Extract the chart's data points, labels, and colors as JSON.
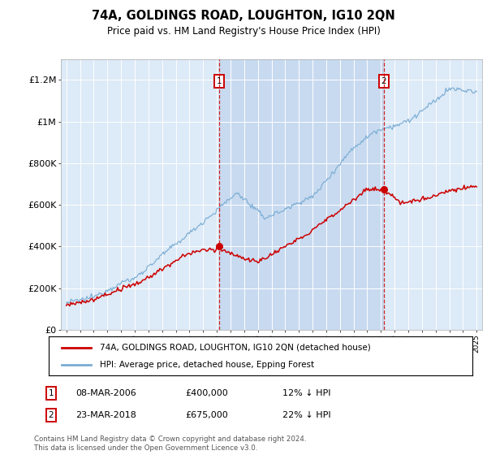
{
  "title": "74A, GOLDINGS ROAD, LOUGHTON, IG10 2QN",
  "subtitle": "Price paid vs. HM Land Registry's House Price Index (HPI)",
  "ylim": [
    0,
    1300000
  ],
  "yticks": [
    0,
    200000,
    400000,
    600000,
    800000,
    1000000,
    1200000
  ],
  "ytick_labels": [
    "£0",
    "£200K",
    "£400K",
    "£600K",
    "£800K",
    "£1M",
    "£1.2M"
  ],
  "bg_color": "#ddeaf7",
  "shade_color": "#c8daf0",
  "red_line_color": "#cc0000",
  "blue_line_color": "#7aadd4",
  "sale1_date": "08-MAR-2006",
  "sale1_price": 400000,
  "sale1_hpi": "12% ↓ HPI",
  "sale1_x": 2006.18,
  "sale2_date": "23-MAR-2018",
  "sale2_price": 675000,
  "sale2_hpi": "22% ↓ HPI",
  "sale2_x": 2018.22,
  "legend_label_red": "74A, GOLDINGS ROAD, LOUGHTON, IG10 2QN (detached house)",
  "legend_label_blue": "HPI: Average price, detached house, Epping Forest",
  "footer": "Contains HM Land Registry data © Crown copyright and database right 2024.\nThis data is licensed under the Open Government Licence v3.0.",
  "xmin": 1995,
  "xmax": 2025
}
